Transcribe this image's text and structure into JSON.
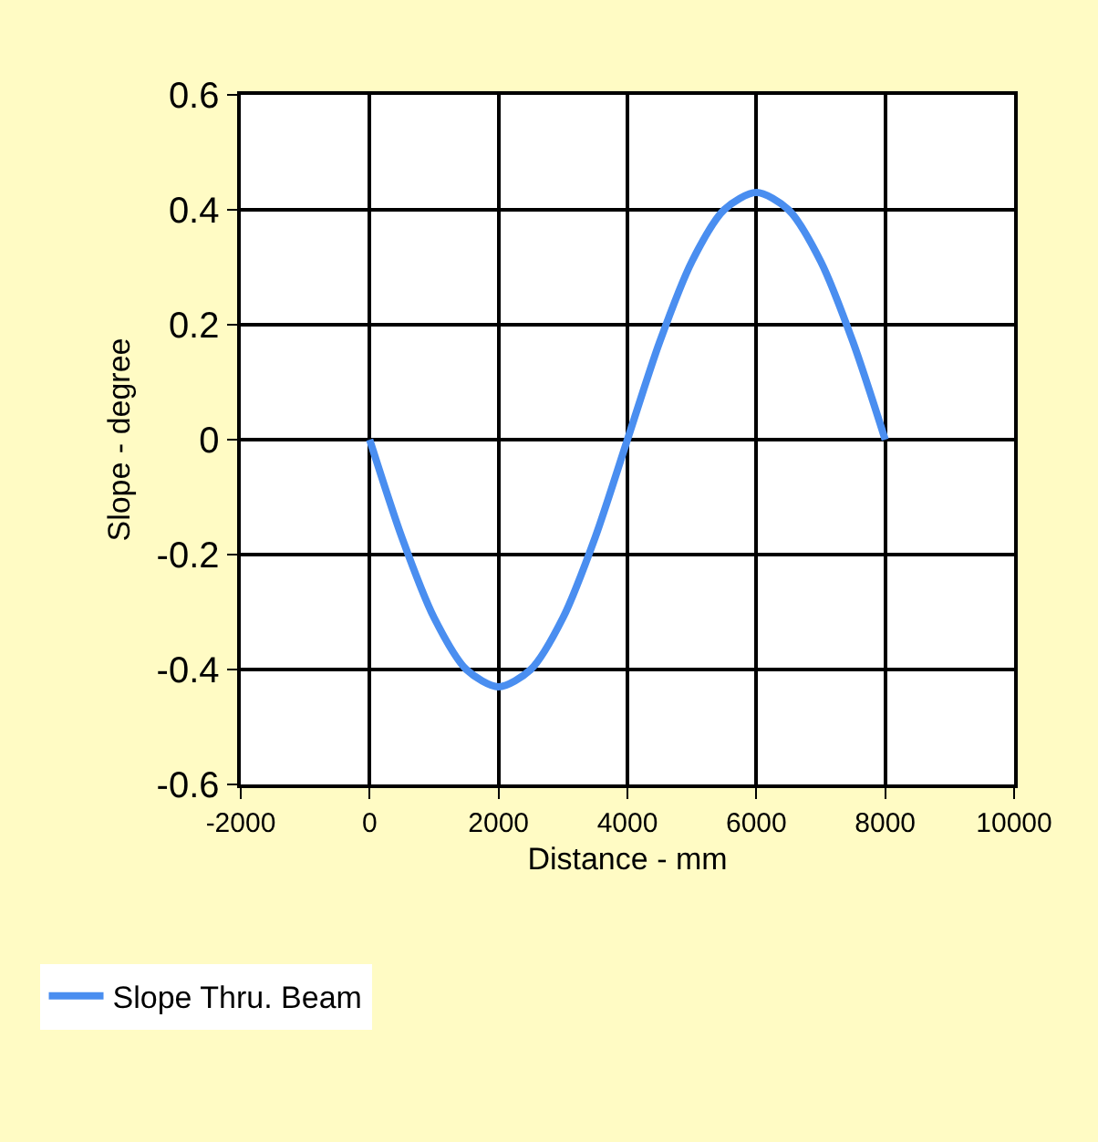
{
  "chart_data": {
    "type": "line",
    "xlabel": "Distance - mm",
    "ylabel": "Slope - degree",
    "x": [
      0,
      500,
      1000,
      1500,
      2000,
      2500,
      3000,
      3500,
      4000,
      4500,
      5000,
      5500,
      6000,
      6500,
      7000,
      7500,
      8000
    ],
    "series": [
      {
        "name": "Slope Thru. Beam",
        "color": "#4a8ef0",
        "values": [
          0,
          -0.17,
          -0.31,
          -0.4,
          -0.43,
          -0.4,
          -0.31,
          -0.17,
          0,
          0.17,
          0.31,
          0.4,
          0.43,
          0.4,
          0.31,
          0.17,
          0
        ]
      }
    ],
    "xlim": [
      -2000,
      10000
    ],
    "xticks": [
      -2000,
      0,
      2000,
      4000,
      6000,
      8000,
      10000
    ],
    "ylim": [
      -0.6,
      0.6
    ],
    "yticks": [
      -0.6,
      -0.4,
      -0.2,
      0,
      0.2,
      0.4,
      0.6
    ],
    "grid": true,
    "legend": "bottom left",
    "marker": "none",
    "line_style": "solid"
  }
}
